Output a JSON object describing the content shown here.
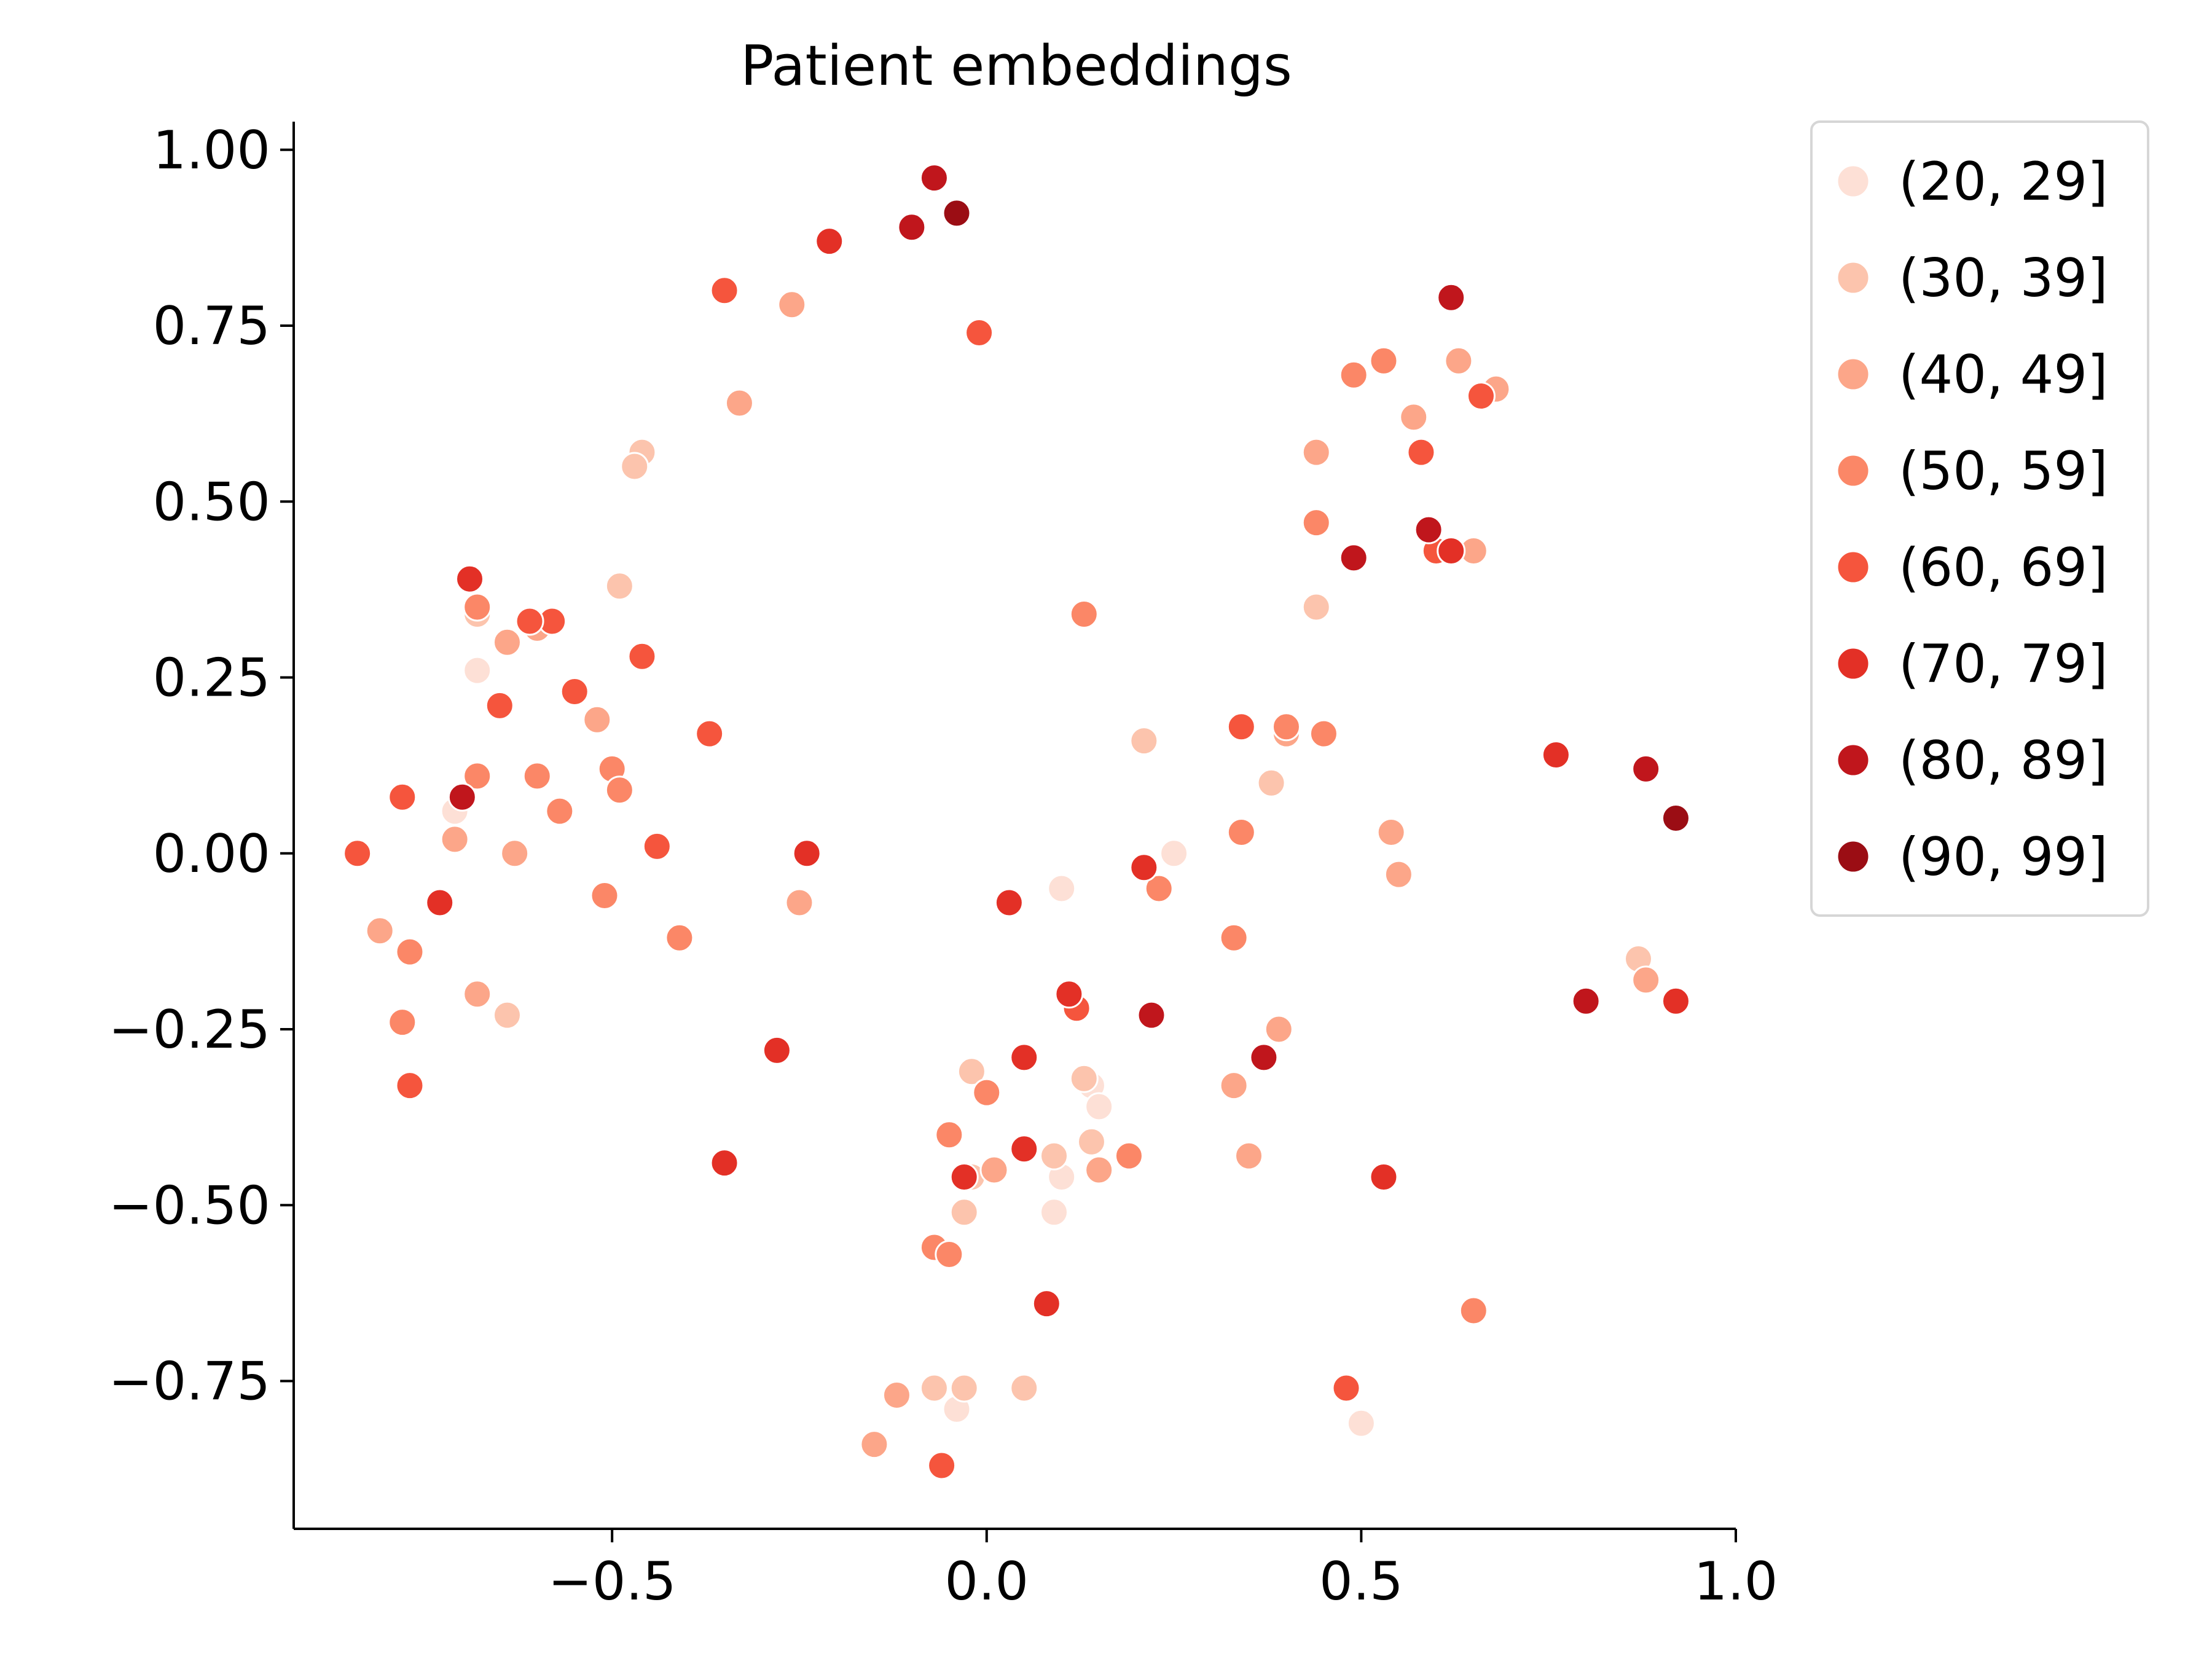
{
  "chart_data": {
    "type": "scatter",
    "title": "Patient embeddings",
    "xlabel": "",
    "ylabel": "",
    "xlim": [
      -0.925,
      1.0
    ],
    "ylim": [
      -0.96,
      1.04
    ],
    "xticks": [
      -0.5,
      0.0,
      0.5,
      1.0
    ],
    "xtick_labels": [
      "−0.5",
      "0.0",
      "0.5",
      "1.0"
    ],
    "yticks": [
      1.0,
      0.75,
      0.5,
      0.25,
      0.0,
      -0.25,
      -0.5,
      -0.75
    ],
    "ytick_labels": [
      "1.00",
      "0.75",
      "0.50",
      "0.25",
      "0.00",
      "−0.25",
      "−0.50",
      "−0.75"
    ],
    "grid": false,
    "legend_position": "outside-top-right",
    "series": [
      {
        "name": "(20, 29]",
        "color": "#fde0d6",
        "points": [
          [
            -0.68,
            0.26
          ],
          [
            -0.71,
            0.06
          ],
          [
            0.1,
            -0.05
          ],
          [
            0.25,
            0.0
          ],
          [
            0.14,
            -0.33
          ],
          [
            0.15,
            -0.36
          ],
          [
            0.1,
            -0.46
          ],
          [
            0.09,
            -0.51
          ],
          [
            -0.04,
            -0.79
          ],
          [
            0.5,
            -0.81
          ]
        ]
      },
      {
        "name": "(30, 39]",
        "color": "#fcc4ad",
        "points": [
          [
            -0.46,
            0.57
          ],
          [
            -0.47,
            0.55
          ],
          [
            -0.49,
            0.38
          ],
          [
            -0.68,
            0.34
          ],
          [
            -0.64,
            -0.23
          ],
          [
            0.21,
            0.16
          ],
          [
            0.38,
            0.1
          ],
          [
            0.44,
            0.35
          ],
          [
            -0.02,
            -0.31
          ],
          [
            0.13,
            -0.32
          ],
          [
            -0.02,
            -0.46
          ],
          [
            0.09,
            -0.43
          ],
          [
            0.14,
            -0.41
          ],
          [
            -0.03,
            -0.51
          ],
          [
            -0.07,
            -0.76
          ],
          [
            -0.03,
            -0.76
          ],
          [
            0.05,
            -0.76
          ],
          [
            0.87,
            -0.15
          ]
        ]
      },
      {
        "name": "(40, 49]",
        "color": "#fca689",
        "points": [
          [
            -0.26,
            0.78
          ],
          [
            -0.33,
            0.64
          ],
          [
            -0.64,
            0.3
          ],
          [
            -0.6,
            0.32
          ],
          [
            -0.52,
            0.19
          ],
          [
            -0.71,
            0.02
          ],
          [
            -0.63,
            0.0
          ],
          [
            -0.81,
            -0.11
          ],
          [
            -0.68,
            -0.2
          ],
          [
            -0.25,
            -0.07
          ],
          [
            0.44,
            0.57
          ],
          [
            0.63,
            0.7
          ],
          [
            0.68,
            0.66
          ],
          [
            0.57,
            0.62
          ],
          [
            0.65,
            0.43
          ],
          [
            0.4,
            0.17
          ],
          [
            0.54,
            0.03
          ],
          [
            0.55,
            -0.03
          ],
          [
            0.39,
            -0.25
          ],
          [
            0.33,
            -0.33
          ],
          [
            0.35,
            -0.43
          ],
          [
            0.01,
            -0.45
          ],
          [
            0.15,
            -0.45
          ],
          [
            -0.12,
            -0.77
          ],
          [
            -0.15,
            -0.84
          ],
          [
            0.88,
            -0.18
          ]
        ]
      },
      {
        "name": "(50, 59]",
        "color": "#fb8767",
        "points": [
          [
            -0.68,
            0.35
          ],
          [
            -0.68,
            0.11
          ],
          [
            -0.6,
            0.11
          ],
          [
            -0.5,
            0.12
          ],
          [
            -0.49,
            0.09
          ],
          [
            -0.57,
            0.06
          ],
          [
            -0.51,
            -0.06
          ],
          [
            -0.41,
            -0.12
          ],
          [
            -0.77,
            -0.14
          ],
          [
            -0.78,
            -0.24
          ],
          [
            0.13,
            0.34
          ],
          [
            0.44,
            0.47
          ],
          [
            0.49,
            0.68
          ],
          [
            0.53,
            0.7
          ],
          [
            0.4,
            0.18
          ],
          [
            0.45,
            0.17
          ],
          [
            0.34,
            0.03
          ],
          [
            0.23,
            -0.05
          ],
          [
            0.33,
            -0.12
          ],
          [
            0.0,
            -0.34
          ],
          [
            -0.05,
            -0.4
          ],
          [
            0.19,
            -0.43
          ],
          [
            -0.07,
            -0.56
          ],
          [
            -0.05,
            -0.57
          ],
          [
            0.65,
            -0.65
          ]
        ]
      },
      {
        "name": "(60, 69]",
        "color": "#f5553d",
        "points": [
          [
            -0.35,
            0.8
          ],
          [
            -0.01,
            0.74
          ],
          [
            -0.58,
            0.33
          ],
          [
            -0.61,
            0.33
          ],
          [
            -0.46,
            0.28
          ],
          [
            -0.55,
            0.23
          ],
          [
            -0.65,
            0.21
          ],
          [
            -0.37,
            0.17
          ],
          [
            -0.78,
            0.08
          ],
          [
            -0.44,
            0.01
          ],
          [
            -0.84,
            0.0
          ],
          [
            -0.77,
            -0.33
          ],
          [
            0.66,
            0.65
          ],
          [
            0.58,
            0.57
          ],
          [
            0.6,
            0.43
          ],
          [
            0.34,
            0.18
          ],
          [
            0.12,
            -0.22
          ],
          [
            -0.06,
            -0.87
          ],
          [
            0.48,
            -0.76
          ]
        ]
      },
      {
        "name": "(70, 79]",
        "color": "#e33026",
        "points": [
          [
            -0.21,
            0.87
          ],
          [
            -0.69,
            0.39
          ],
          [
            -0.73,
            -0.07
          ],
          [
            -0.24,
            0.0
          ],
          [
            -0.35,
            -0.44
          ],
          [
            -0.28,
            -0.28
          ],
          [
            0.03,
            -0.07
          ],
          [
            0.21,
            -0.02
          ],
          [
            0.11,
            -0.2
          ],
          [
            0.05,
            -0.29
          ],
          [
            0.05,
            -0.42
          ],
          [
            -0.03,
            -0.46
          ],
          [
            0.08,
            -0.64
          ],
          [
            0.53,
            -0.46
          ],
          [
            0.62,
            0.43
          ],
          [
            0.76,
            0.14
          ],
          [
            0.92,
            -0.21
          ]
        ]
      },
      {
        "name": "(80, 89]",
        "color": "#c0161c",
        "points": [
          [
            -0.1,
            0.89
          ],
          [
            -0.07,
            0.96
          ],
          [
            -0.7,
            0.08
          ],
          [
            0.22,
            -0.23
          ],
          [
            0.37,
            -0.29
          ],
          [
            0.62,
            0.79
          ],
          [
            0.59,
            0.46
          ],
          [
            0.49,
            0.42
          ],
          [
            0.88,
            0.12
          ],
          [
            0.8,
            -0.21
          ]
        ]
      },
      {
        "name": "(90, 99]",
        "color": "#9b0d14",
        "points": [
          [
            -0.04,
            0.91
          ],
          [
            0.92,
            0.05
          ]
        ]
      }
    ]
  }
}
